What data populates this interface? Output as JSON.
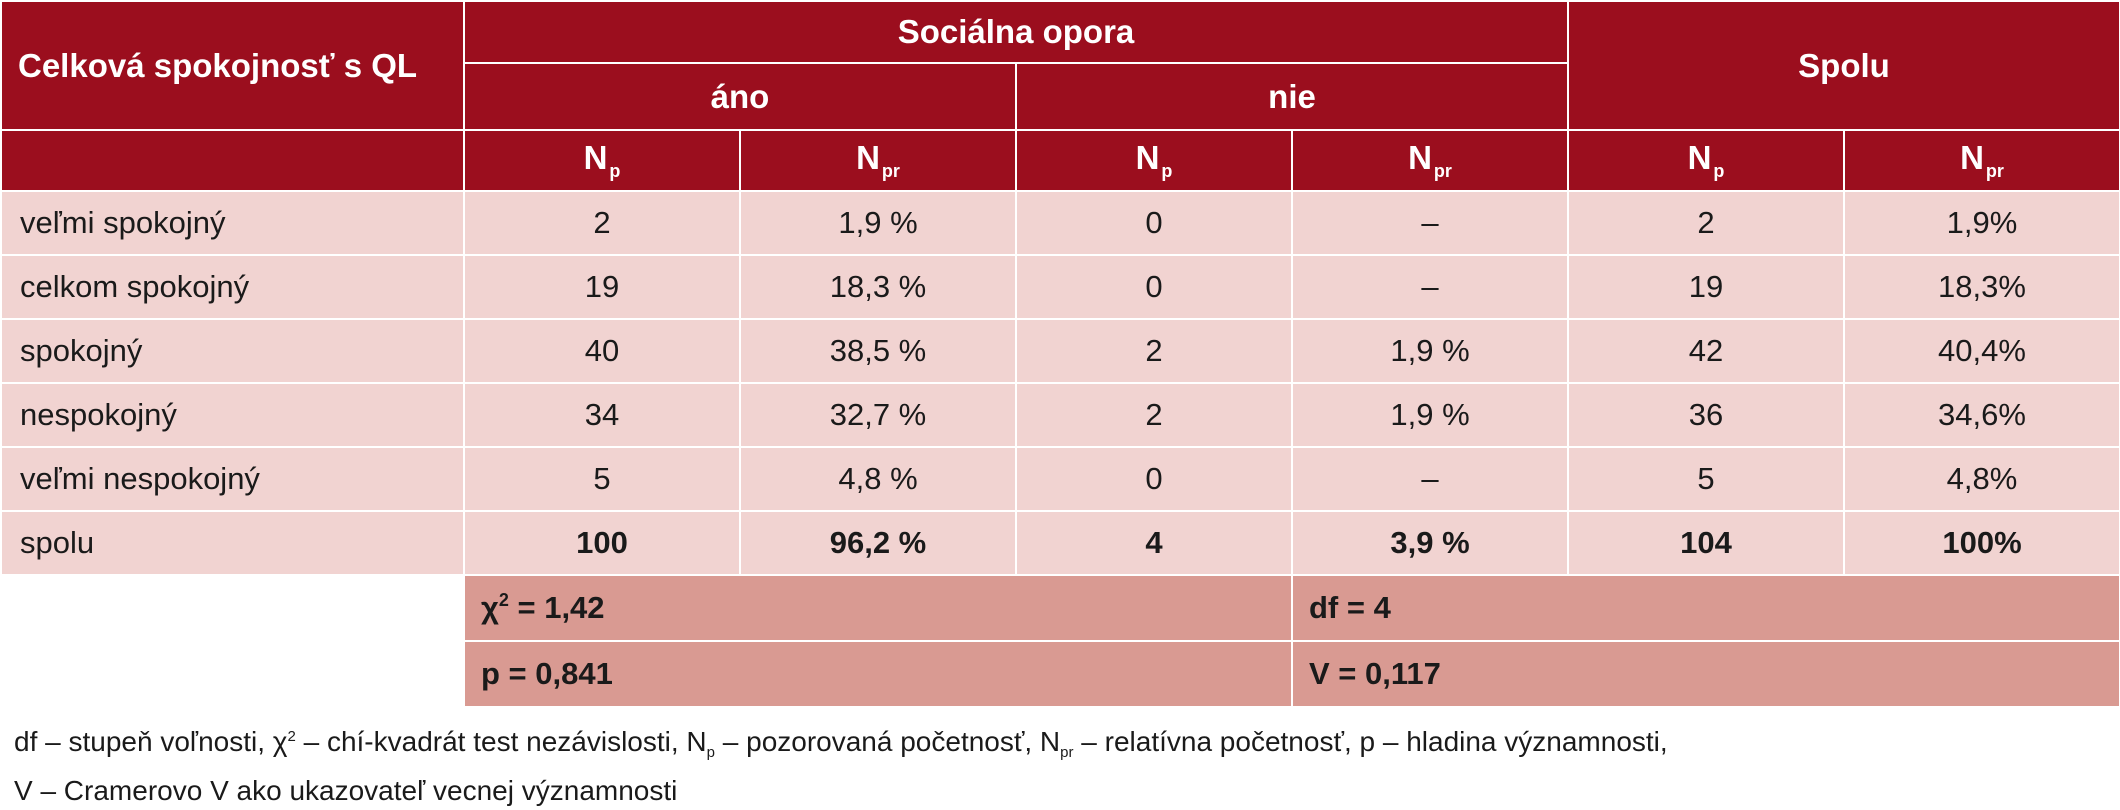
{
  "table": {
    "header": {
      "row_label": "Celková spokojnosť s QL",
      "group": "Sociálna opora",
      "yes": "áno",
      "no": "nie",
      "total": "Spolu",
      "n_symbol": "N",
      "np_sub": "p",
      "npr_sub": "pr"
    },
    "rows": [
      {
        "label": "veľmi spokojný",
        "yes_np": "2",
        "yes_npr": "1,9 %",
        "no_np": "0",
        "no_npr": "–",
        "tot_np": "2",
        "tot_npr": "1,9%"
      },
      {
        "label": "celkom spokojný",
        "yes_np": "19",
        "yes_npr": "18,3 %",
        "no_np": "0",
        "no_npr": "–",
        "tot_np": "19",
        "tot_npr": "18,3%"
      },
      {
        "label": "spokojný",
        "yes_np": "40",
        "yes_npr": "38,5 %",
        "no_np": "2",
        "no_npr": "1,9 %",
        "tot_np": "42",
        "tot_npr": "40,4%"
      },
      {
        "label": "nespokojný",
        "yes_np": "34",
        "yes_npr": "32,7 %",
        "no_np": "2",
        "no_npr": "1,9 %",
        "tot_np": "36",
        "tot_npr": "34,6%"
      },
      {
        "label": "veľmi nespokojný",
        "yes_np": "5",
        "yes_npr": "4,8 %",
        "no_np": "0",
        "no_npr": "–",
        "tot_np": "5",
        "tot_npr": "4,8%"
      },
      {
        "label": "spolu",
        "yes_np": "100",
        "yes_npr": "96,2 %",
        "no_np": "4",
        "no_npr": "3,9 %",
        "tot_np": "104",
        "tot_npr": "100%"
      }
    ],
    "stats": {
      "chi_symbol": "χ",
      "chi_sup": "2",
      "chi_value": " = 1,42",
      "df": "df = 4",
      "p": "p = 0,841",
      "v": "V = 0,117"
    }
  },
  "footnote": {
    "seg1": "df – stupeň voľnosti, χ",
    "sup2": "2",
    "seg2": " – chí-kvadrát test nezávislosti, N",
    "sub_p": "p",
    "seg3": " – pozorovaná početnosť, N",
    "sub_pr": "pr",
    "seg4": " – relatívna početnosť, p – hladina významnosti,",
    "line2": "V – Cramerovo V ako ukazovateľ vecnej významnosti"
  },
  "colors": {
    "header_bg": "#9b0e1e",
    "row_bg": "#f1d3d1",
    "stats_bg": "#d99a92"
  }
}
